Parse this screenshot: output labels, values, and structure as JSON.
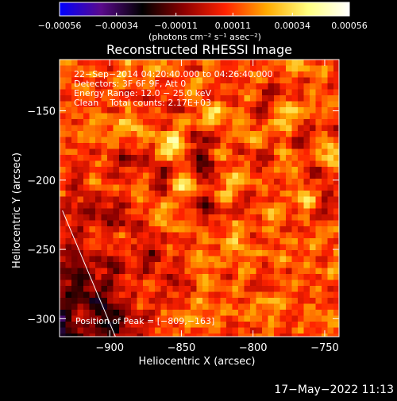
{
  "chart_data": {
    "type": "heatmap",
    "title": "Reconstructed RHESSI Image",
    "xlabel": "Heliocentric X (arcsec)",
    "ylabel": "Heliocentric Y (arcsec)",
    "xlim": [
      -935,
      -740
    ],
    "ylim": [
      -313,
      -113
    ],
    "x_ticks": [
      -900,
      -850,
      -800,
      -750
    ],
    "x_tick_labels": [
      "−900",
      "−850",
      "−800",
      "−750"
    ],
    "y_ticks": [
      -150,
      -200,
      -250,
      -300
    ],
    "y_tick_labels": [
      "−150",
      "−200",
      "−250",
      "−300"
    ],
    "colorbar": {
      "min": -0.00056,
      "max": 0.00056,
      "colormap": [
        "#0000ff",
        "#5a0a8c",
        "#000000",
        "#8c0000",
        "#ff2200",
        "#ffaa00",
        "#ffff80",
        "#ffffff"
      ],
      "ticks": [
        -0.00056,
        -0.00034,
        -0.00011,
        0.00011,
        0.00034,
        0.00056
      ],
      "tick_labels": [
        "−0.00056",
        "−0.00034",
        "−0.00011",
        "0.00011",
        "0.00034",
        "0.00056"
      ],
      "units_label": "(photons cm⁻² s⁻¹ asec⁻²)"
    },
    "annotations": [
      "22−Sep−2014 04:20:40.000 to 04:26:40.000",
      "Detectors: 3F 6F 9F, Att 0",
      "Energy Range: 12.0 − 25.0 keV",
      "Clean    Total counts: 2.17E+03"
    ],
    "peak_label": "Position of Peak = [−809,−163]",
    "limb_line": [
      [
        -933,
        -222
      ],
      [
        -896,
        -313
      ]
    ],
    "grid": false
  },
  "footer": {
    "timestamp": "17−May−2022 11:13"
  }
}
